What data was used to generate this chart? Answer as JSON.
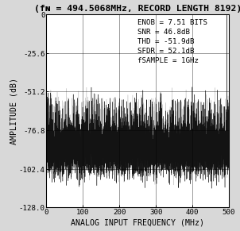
{
  "title": "(fɴ = 494.5068MHz, RECORD LENGTH 8192)",
  "xlabel": "ANALOG INPUT FREQUENCY (MHz)",
  "ylabel": "AMPLITUDE (dB)",
  "xlim": [
    0,
    500
  ],
  "ylim": [
    -128,
    0
  ],
  "yticks": [
    0,
    -25.6,
    -51.2,
    -76.8,
    -102.4,
    -128.0
  ],
  "ytick_labels": [
    "0",
    "-25.6",
    "-51.2",
    "-76.8",
    "-102.4",
    "-128.0"
  ],
  "xticks": [
    0,
    100,
    200,
    300,
    400,
    500
  ],
  "annotation_lines": [
    "ENOB = 7.51 BITS",
    "SNR = 46.8dB",
    "THD = -51.9dB",
    "SFDR = 52.1dB",
    "fSAMPLE = 1GHz"
  ],
  "noise_mean": -89.0,
  "noise_std": 8.0,
  "bg_color": "#d8d8d8",
  "plot_bg": "#ffffff",
  "line_color_dark": "#000000",
  "line_color_gray": "#aaaaaa",
  "title_fontsize": 7.5,
  "axis_label_fontsize": 6.5,
  "tick_fontsize": 6.0,
  "annot_fontsize": 6.0
}
